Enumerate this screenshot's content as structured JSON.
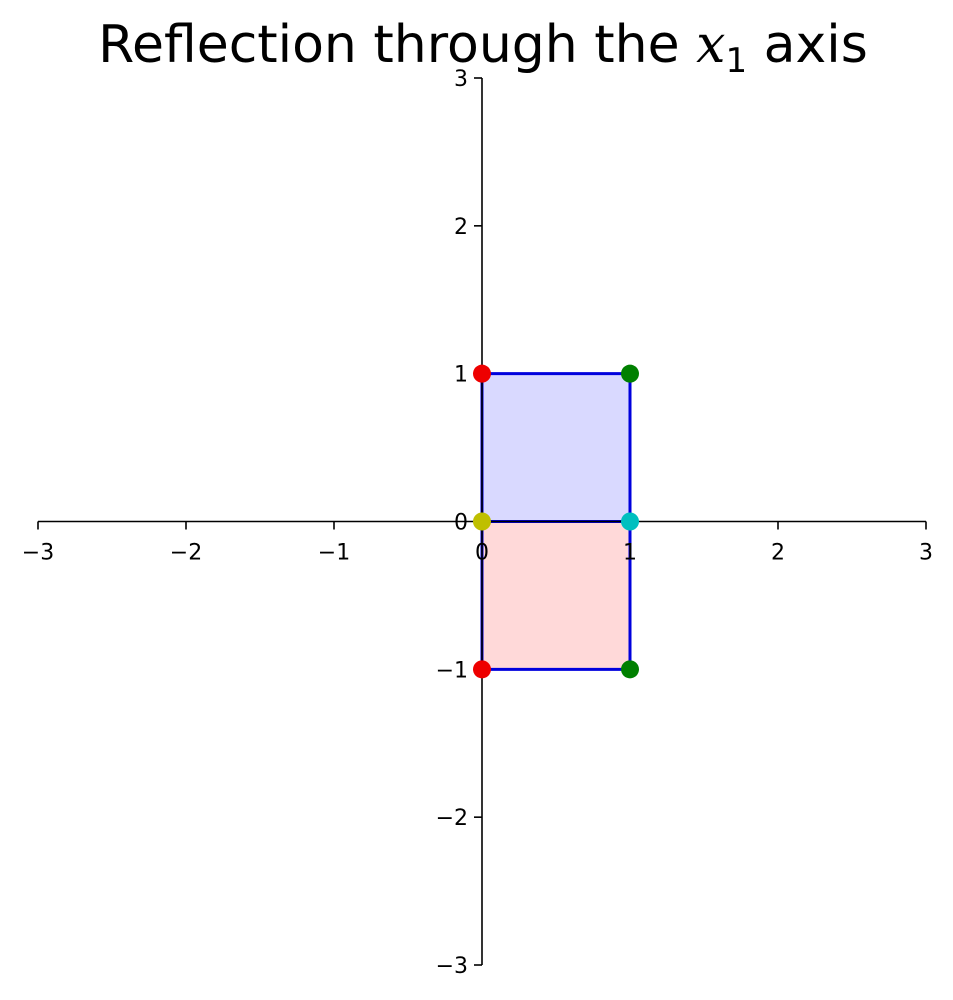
{
  "chart_data": {
    "type": "scatter",
    "title": {
      "prefix": "Reflection through the ",
      "variable": "x",
      "subscript": "1",
      "suffix": " axis"
    },
    "xlim": [
      -3,
      3
    ],
    "ylim": [
      -3,
      3
    ],
    "x_ticks": [
      "−3",
      "−2",
      "−1",
      "0",
      "1",
      "2",
      "3"
    ],
    "y_ticks": [
      "3",
      "2",
      "1",
      "0",
      "−1",
      "−2",
      "−3"
    ],
    "x_tick_values": [
      -3,
      -2,
      -1,
      0,
      1,
      2,
      3
    ],
    "y_tick_values": [
      3,
      2,
      1,
      0,
      -1,
      -2,
      -3
    ],
    "grid": false,
    "shapes": [
      {
        "vertices": [
          [
            0,
            0
          ],
          [
            1,
            0
          ],
          [
            1,
            1
          ],
          [
            0,
            1
          ]
        ],
        "fill": "#d9d9ff",
        "edge": "#0000dd"
      },
      {
        "vertices": [
          [
            0,
            0
          ],
          [
            1,
            0
          ],
          [
            1,
            -1
          ],
          [
            0,
            -1
          ]
        ],
        "fill": "#ffd9d9",
        "edge": "#0000dd"
      }
    ],
    "points": [
      {
        "x": 0,
        "y": 1,
        "color": "#ee0000"
      },
      {
        "x": 1,
        "y": 1,
        "color": "#008000"
      },
      {
        "x": 0,
        "y": -1,
        "color": "#ee0000"
      },
      {
        "x": 1,
        "y": -1,
        "color": "#008000"
      },
      {
        "x": 0,
        "y": 0,
        "color": "#bfbf00"
      },
      {
        "x": 1,
        "y": 0,
        "color": "#00bfbf"
      }
    ]
  }
}
